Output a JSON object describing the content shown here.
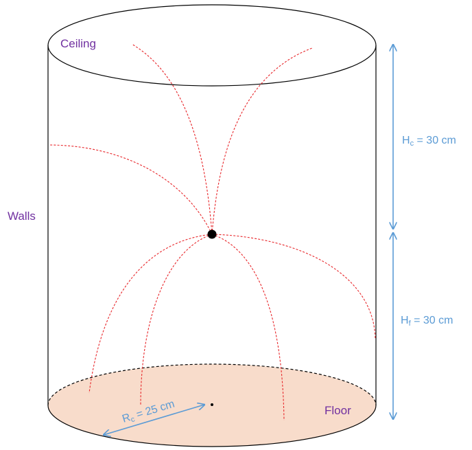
{
  "labels": {
    "ceiling": "Ceiling",
    "walls": "Walls",
    "floor": "Floor"
  },
  "dimensions": {
    "hc": {
      "symbol": "H",
      "subscript": "c",
      "value": " = 30 cm"
    },
    "hf": {
      "symbol": "H",
      "subscript": "f",
      "value": " = 30 cm"
    },
    "rc": {
      "symbol": "R",
      "subscript": "c",
      "value": " = 25 cm"
    }
  },
  "colors": {
    "label_purple": "#7030a0",
    "dimension_blue": "#5b9bd5",
    "ray_red": "#e8262a",
    "floor_fill": "#f8dccb"
  }
}
